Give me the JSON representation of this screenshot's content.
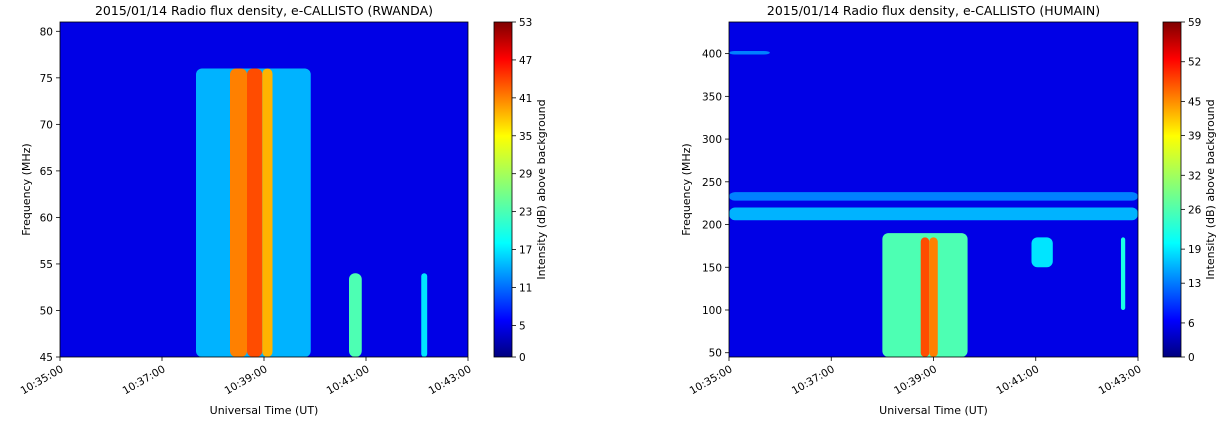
{
  "chart_data": [
    {
      "type": "heatmap",
      "title": "2015/01/14  Radio flux density, e-CALLISTO (RWANDA)",
      "xlabel": "Universal Time (UT)",
      "ylabel": "Frequency (MHz)",
      "colorbar_label": "Intensity (dB) above background",
      "xlim": [
        "10:35:00",
        "10:43:00"
      ],
      "ylim": [
        45,
        81
      ],
      "x_ticks": [
        "10:35:00",
        "10:37:00",
        "10:39:00",
        "10:41:00",
        "10:43:00"
      ],
      "y_ticks": [
        45,
        50,
        55,
        60,
        65,
        70,
        75,
        80
      ],
      "colorbar_range": [
        0,
        53
      ],
      "colorbar_ticks": [
        0,
        5,
        11,
        17,
        23,
        29,
        35,
        41,
        47,
        53
      ],
      "colormap": "jet",
      "features": [
        {
          "t0": "10:37:40",
          "t1": "10:39:55",
          "f0": 45,
          "f1": 76,
          "level": 0.3
        },
        {
          "t0": "10:38:20",
          "t1": "10:38:40",
          "f0": 45,
          "f1": 76,
          "level": 0.75
        },
        {
          "t0": "10:38:40",
          "t1": "10:38:58",
          "f0": 45,
          "f1": 76,
          "level": 0.8
        },
        {
          "t0": "10:38:58",
          "t1": "10:39:10",
          "f0": 45,
          "f1": 76,
          "level": 0.7
        },
        {
          "t0": "10:40:40",
          "t1": "10:40:55",
          "f0": 45,
          "f1": 54,
          "level": 0.45
        },
        {
          "t0": "10:42:05",
          "t1": "10:42:12",
          "f0": 45,
          "f1": 54,
          "level": 0.35
        }
      ]
    },
    {
      "type": "heatmap",
      "title": "2015/01/14  Radio flux density, e-CALLISTO (HUMAIN)",
      "xlabel": "Universal Time (UT)",
      "ylabel": "Frequency (MHz)",
      "colorbar_label": "Intensity (dB) above background",
      "xlim": [
        "10:35:00",
        "10:43:00"
      ],
      "ylim": [
        45,
        437
      ],
      "x_ticks": [
        "10:35:00",
        "10:37:00",
        "10:39:00",
        "10:41:00",
        "10:43:00"
      ],
      "y_ticks": [
        50,
        100,
        150,
        200,
        250,
        300,
        350,
        400
      ],
      "colorbar_range": [
        0,
        59
      ],
      "colorbar_ticks": [
        0,
        6,
        13,
        19,
        26,
        32,
        39,
        45,
        52,
        59
      ],
      "colormap": "jet",
      "features": [
        {
          "t0": "10:35:00",
          "t1": "10:35:48",
          "f0": 399,
          "f1": 403,
          "level": 0.25
        },
        {
          "t0": "10:35:00",
          "t1": "10:43:00",
          "f0": 205,
          "f1": 220,
          "level": 0.3
        },
        {
          "t0": "10:35:00",
          "t1": "10:43:00",
          "f0": 228,
          "f1": 238,
          "level": 0.25
        },
        {
          "t0": "10:38:00",
          "t1": "10:39:40",
          "f0": 45,
          "f1": 190,
          "level": 0.45
        },
        {
          "t0": "10:38:45",
          "t1": "10:38:55",
          "f0": 45,
          "f1": 185,
          "level": 0.8
        },
        {
          "t0": "10:38:55",
          "t1": "10:39:05",
          "f0": 45,
          "f1": 185,
          "level": 0.75
        },
        {
          "t0": "10:40:55",
          "t1": "10:41:20",
          "f0": 150,
          "f1": 185,
          "level": 0.35
        },
        {
          "t0": "10:42:40",
          "t1": "10:42:45",
          "f0": 100,
          "f1": 185,
          "level": 0.4
        }
      ]
    }
  ]
}
